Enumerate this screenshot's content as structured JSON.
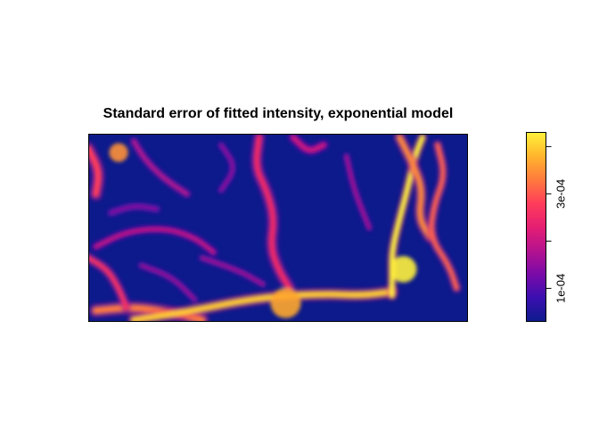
{
  "chart_data": {
    "type": "heatmap",
    "title": "Standard error of fitted intensity, exponential model",
    "xlabel": "",
    "ylabel": "",
    "colorbar": {
      "range": [
        3e-05,
        0.00043
      ],
      "ticks": [
        0.0001,
        0.0002,
        0.0003,
        0.0004
      ],
      "tick_labels": [
        "1e-04",
        "",
        "3e-04",
        ""
      ],
      "colors": [
        "#0d1a8c",
        "#3a0fb0",
        "#7a0aa8",
        "#b5128f",
        "#e51e72",
        "#ff3d5a",
        "#ff7a3d",
        "#ffb52c",
        "#fff23a"
      ]
    },
    "features": [
      {
        "kind": "curve",
        "level": 0.75,
        "width": 4.5,
        "points": [
          [
            0.02,
            0.94
          ],
          [
            0.12,
            0.92
          ],
          [
            0.22,
            0.95
          ],
          [
            0.3,
            0.99
          ]
        ]
      },
      {
        "kind": "curve",
        "level": 0.92,
        "width": 4,
        "points": [
          [
            0.12,
            0.99
          ],
          [
            0.25,
            0.95
          ],
          [
            0.45,
            0.87
          ],
          [
            0.62,
            0.85
          ],
          [
            0.72,
            0.86
          ],
          [
            0.8,
            0.84
          ]
        ]
      },
      {
        "kind": "curve",
        "level": 1.0,
        "width": 3.2,
        "points": [
          [
            0.88,
            0.02
          ],
          [
            0.86,
            0.12
          ],
          [
            0.84,
            0.3
          ],
          [
            0.82,
            0.45
          ],
          [
            0.8,
            0.62
          ],
          [
            0.8,
            0.75
          ],
          [
            0.8,
            0.86
          ]
        ]
      },
      {
        "kind": "curve",
        "level": 0.78,
        "width": 3.8,
        "points": [
          [
            0.82,
            0.02
          ],
          [
            0.86,
            0.18
          ],
          [
            0.88,
            0.3
          ],
          [
            0.87,
            0.45
          ],
          [
            0.9,
            0.55
          ]
        ]
      },
      {
        "kind": "curve",
        "level": 0.7,
        "width": 3.2,
        "points": [
          [
            0.92,
            0.06
          ],
          [
            0.94,
            0.22
          ],
          [
            0.91,
            0.38
          ],
          [
            0.9,
            0.55
          ],
          [
            0.95,
            0.7
          ],
          [
            0.97,
            0.82
          ]
        ]
      },
      {
        "kind": "curve",
        "level": 0.55,
        "width": 4.2,
        "points": [
          [
            0.45,
            0.02
          ],
          [
            0.44,
            0.18
          ],
          [
            0.47,
            0.3
          ],
          [
            0.49,
            0.45
          ],
          [
            0.48,
            0.6
          ],
          [
            0.5,
            0.72
          ],
          [
            0.53,
            0.82
          ]
        ]
      },
      {
        "kind": "curve",
        "level": 0.45,
        "width": 3.5,
        "points": [
          [
            0.54,
            0.02
          ],
          [
            0.58,
            0.1
          ],
          [
            0.62,
            0.06
          ]
        ]
      },
      {
        "kind": "curve",
        "level": 0.62,
        "width": 4.5,
        "points": [
          [
            0.0,
            0.08
          ],
          [
            0.03,
            0.2
          ],
          [
            0.02,
            0.32
          ]
        ]
      },
      {
        "kind": "curve",
        "level": 0.58,
        "width": 3.5,
        "points": [
          [
            0.0,
            0.66
          ],
          [
            0.05,
            0.72
          ],
          [
            0.08,
            0.82
          ],
          [
            0.1,
            0.92
          ]
        ]
      },
      {
        "kind": "curve",
        "level": 0.42,
        "width": 3,
        "points": [
          [
            0.02,
            0.6
          ],
          [
            0.1,
            0.52
          ],
          [
            0.2,
            0.5
          ],
          [
            0.28,
            0.55
          ],
          [
            0.33,
            0.63
          ]
        ]
      },
      {
        "kind": "curve",
        "level": 0.38,
        "width": 3,
        "points": [
          [
            0.12,
            0.04
          ],
          [
            0.15,
            0.14
          ],
          [
            0.2,
            0.24
          ],
          [
            0.26,
            0.32
          ]
        ]
      },
      {
        "kind": "curve",
        "level": 0.34,
        "width": 2.6,
        "points": [
          [
            0.3,
            0.66
          ],
          [
            0.4,
            0.73
          ],
          [
            0.46,
            0.8
          ]
        ]
      },
      {
        "kind": "curve",
        "level": 0.3,
        "width": 2.6,
        "points": [
          [
            0.35,
            0.06
          ],
          [
            0.39,
            0.18
          ],
          [
            0.35,
            0.3
          ]
        ]
      },
      {
        "kind": "curve",
        "level": 0.28,
        "width": 3,
        "points": [
          [
            0.06,
            0.42
          ],
          [
            0.12,
            0.38
          ],
          [
            0.18,
            0.4
          ]
        ]
      },
      {
        "kind": "curve",
        "level": 0.32,
        "width": 2.6,
        "points": [
          [
            0.14,
            0.7
          ],
          [
            0.22,
            0.76
          ],
          [
            0.28,
            0.88
          ]
        ]
      },
      {
        "kind": "curve",
        "level": 0.35,
        "width": 2.6,
        "points": [
          [
            0.68,
            0.12
          ],
          [
            0.7,
            0.3
          ],
          [
            0.74,
            0.5
          ]
        ]
      },
      {
        "kind": "blob",
        "level": 1.0,
        "cx": 0.83,
        "cy": 0.72,
        "r": 0.07
      },
      {
        "kind": "blob",
        "level": 0.85,
        "cx": 0.52,
        "cy": 0.9,
        "r": 0.08
      },
      {
        "kind": "blob",
        "level": 0.8,
        "cx": 0.08,
        "cy": 0.1,
        "r": 0.05
      }
    ]
  }
}
